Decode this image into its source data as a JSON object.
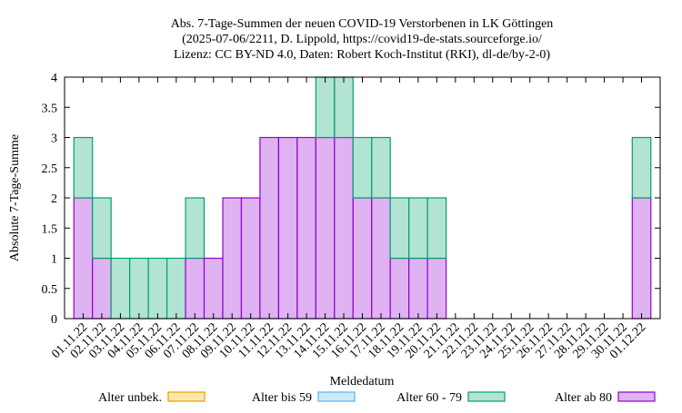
{
  "chart_data": {
    "type": "stacked-bar",
    "title": [
      "Abs. 7-Tage-Summen der neuen COVID-19 Verstorbenen in LK Göttingen",
      "(2025-07-06/2211, D. Lippold, https://covid19-de-stats.sourceforge.io/",
      "Lizenz: CC BY-ND 4.0, Daten: Robert Koch-Institut (RKI), dl-de/by-2-0)"
    ],
    "x_label": "Meldedatum",
    "y_label": "Absolute 7-Tage-Summe",
    "categories": [
      "01.11.22",
      "02.11.22",
      "03.11.22",
      "04.11.22",
      "05.11.22",
      "06.11.22",
      "07.11.22",
      "08.11.22",
      "09.11.22",
      "10.11.22",
      "11.11.22",
      "12.11.22",
      "13.11.22",
      "14.11.22",
      "15.11.22",
      "16.11.22",
      "17.11.22",
      "18.11.22",
      "19.11.22",
      "20.11.22",
      "21.11.22",
      "22.11.22",
      "23.11.22",
      "24.11.22",
      "25.11.22",
      "26.11.22",
      "27.11.22",
      "28.11.22",
      "29.11.22",
      "30.11.22",
      "01.12.22"
    ],
    "series": [
      {
        "name": "Alter unbek.",
        "color": "#fde6a8",
        "edge": "#e69f00",
        "values": [
          0,
          0,
          0,
          0,
          0,
          0,
          0,
          0,
          0,
          0,
          0,
          0,
          0,
          0,
          0,
          0,
          0,
          0,
          0,
          0,
          0,
          0,
          0,
          0,
          0,
          0,
          0,
          0,
          0,
          0,
          0
        ]
      },
      {
        "name": "Alter bis 59",
        "color": "#cfe8f8",
        "edge": "#56b4e9",
        "values": [
          0,
          0,
          0,
          0,
          0,
          0,
          0,
          0,
          0,
          0,
          0,
          0,
          0,
          0,
          0,
          0,
          0,
          0,
          0,
          0,
          0,
          0,
          0,
          0,
          0,
          0,
          0,
          0,
          0,
          0,
          0
        ]
      },
      {
        "name": "Alter 60 - 79",
        "color": "#b3e3d3",
        "edge": "#009e73",
        "values": [
          1,
          1,
          1,
          1,
          1,
          1,
          1,
          0,
          0,
          0,
          0,
          0,
          0,
          1,
          1,
          1,
          1,
          1,
          1,
          1,
          0,
          0,
          0,
          0,
          0,
          0,
          0,
          0,
          0,
          0,
          1
        ]
      },
      {
        "name": "Alter ab 80",
        "color": "#dfb2f1",
        "edge": "#9400d3",
        "values": [
          2,
          1,
          0,
          0,
          0,
          0,
          1,
          1,
          2,
          2,
          3,
          3,
          3,
          3,
          3,
          2,
          2,
          1,
          1,
          1,
          0,
          0,
          0,
          0,
          0,
          0,
          0,
          0,
          0,
          0,
          2
        ]
      }
    ],
    "ylim": [
      0,
      4
    ],
    "yticks": [
      0,
      0.5,
      1,
      1.5,
      2,
      2.5,
      3,
      3.5,
      4
    ],
    "legend": "bottom"
  }
}
